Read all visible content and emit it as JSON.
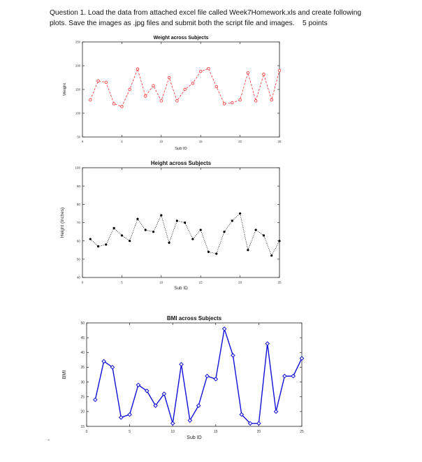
{
  "question": {
    "line1": "Question 1. Load the data from attached excel file called Week7Homework.xls and create following",
    "line2": "plots. Save the images as .jpg files and submit both the script file and images.",
    "points": "5 points"
  },
  "footer_mark": "-",
  "chart_data": [
    {
      "type": "line",
      "title": "Weight across Subjects",
      "xlabel": "Sub ID",
      "ylabel": "Weight",
      "xlim": [
        0,
        25
      ],
      "ylim": [
        50,
        250
      ],
      "xticks": [
        0,
        5,
        10,
        15,
        20,
        25
      ],
      "yticks": [
        50,
        100,
        150,
        200,
        250
      ],
      "line_style": "dashed",
      "marker": "circle",
      "color": "#ff2a2a",
      "x": [
        1,
        2,
        3,
        4,
        5,
        6,
        7,
        8,
        9,
        10,
        11,
        12,
        13,
        14,
        15,
        16,
        17,
        18,
        19,
        20,
        21,
        22,
        23,
        24,
        25
      ],
      "values": [
        128,
        168,
        165,
        120,
        114,
        150,
        193,
        136,
        158,
        126,
        175,
        126,
        150,
        163,
        188,
        194,
        156,
        120,
        122,
        128,
        185,
        126,
        182,
        128,
        190
      ]
    },
    {
      "type": "line",
      "title": "Height across Subjects",
      "xlabel": "Sub ID",
      "ylabel": "Height (Inches)",
      "xlim": [
        0,
        25
      ],
      "ylim": [
        40,
        100
      ],
      "xticks": [
        0,
        5,
        10,
        15,
        20,
        25
      ],
      "yticks": [
        40,
        50,
        60,
        70,
        80,
        90,
        100
      ],
      "line_style": "dotted",
      "marker": "dot",
      "color": "#000000",
      "x": [
        1,
        2,
        3,
        4,
        5,
        6,
        7,
        8,
        9,
        10,
        11,
        12,
        13,
        14,
        15,
        16,
        17,
        18,
        19,
        20,
        21,
        22,
        23,
        24,
        25
      ],
      "values": [
        61,
        57,
        58,
        67,
        63,
        60,
        72,
        66,
        65,
        74,
        59,
        71,
        70,
        61,
        66,
        54,
        53,
        65,
        71,
        75,
        55,
        66,
        63,
        52,
        60
      ]
    },
    {
      "type": "line",
      "title": "BMI across Subjects",
      "xlabel": "Sub ID",
      "ylabel": "BMI",
      "xlim": [
        0,
        25
      ],
      "ylim": [
        15,
        50
      ],
      "xticks": [
        0,
        5,
        10,
        15,
        20,
        25
      ],
      "yticks": [
        15,
        20,
        25,
        30,
        35,
        40,
        45,
        50
      ],
      "line_style": "solid",
      "marker": "diamond",
      "color": "#1010d8",
      "x": [
        1,
        2,
        3,
        4,
        5,
        6,
        7,
        8,
        9,
        10,
        11,
        12,
        13,
        14,
        15,
        16,
        17,
        18,
        19,
        20,
        21,
        22,
        23,
        24,
        25
      ],
      "values": [
        24,
        37,
        35,
        18,
        19,
        29,
        27,
        22,
        26,
        16,
        36,
        17,
        22,
        32,
        31,
        48,
        39,
        19,
        16,
        16,
        43,
        20,
        32,
        32,
        38
      ]
    }
  ]
}
